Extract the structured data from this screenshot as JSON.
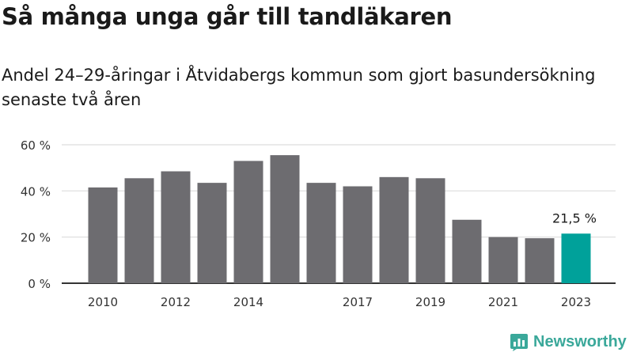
{
  "title": "Så många unga går till tandläkaren",
  "subtitle": "Andel 24–29-åringar i Åtvidabergs kommun som gjort basundersökning senaste två åren",
  "brand": {
    "name": "Newsworthy",
    "color": "#3aa89a"
  },
  "colors": {
    "bar": "#6d6c70",
    "highlight": "#00a19a",
    "grid": "#dddddd",
    "axis": "#333333"
  },
  "chart_data": {
    "type": "bar",
    "categories": [
      "2010",
      "2011",
      "2012",
      "2013",
      "2014",
      "2015",
      "2016",
      "2017",
      "2018",
      "2019",
      "2020",
      "2021",
      "2022",
      "2023"
    ],
    "x_tick_labels": [
      "2010",
      "2012",
      "2014",
      "2017",
      "2019",
      "2021",
      "2023"
    ],
    "values": [
      41.5,
      45.5,
      48.5,
      43.5,
      53,
      55.5,
      43.5,
      42,
      46,
      45.5,
      27.5,
      20,
      19.5,
      21.5
    ],
    "highlight_index": 13,
    "data_labels": [
      {
        "category": "2023",
        "text": "21,5 %"
      }
    ],
    "y_ticks": [
      0,
      20,
      40,
      60
    ],
    "y_tick_labels": [
      "0 %",
      "20 %",
      "40 %",
      "60 %"
    ],
    "ylim": [
      0,
      60
    ],
    "grid": true
  }
}
